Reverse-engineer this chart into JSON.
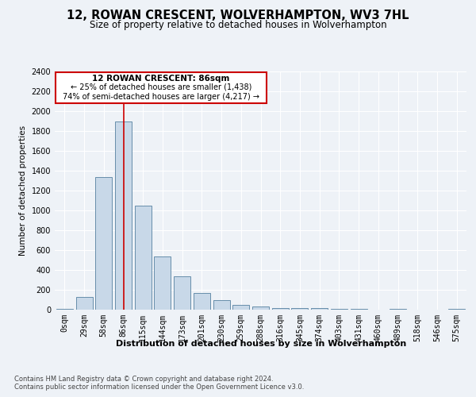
{
  "title1": "12, ROWAN CRESCENT, WOLVERHAMPTON, WV3 7HL",
  "title2": "Size of property relative to detached houses in Wolverhampton",
  "xlabel": "Distribution of detached houses by size in Wolverhampton",
  "ylabel": "Number of detached properties",
  "footer1": "Contains HM Land Registry data © Crown copyright and database right 2024.",
  "footer2": "Contains public sector information licensed under the Open Government Licence v3.0.",
  "annotation_title": "12 ROWAN CRESCENT: 86sqm",
  "annotation_line2": "← 25% of detached houses are smaller (1,438)",
  "annotation_line3": "74% of semi-detached houses are larger (4,217) →",
  "property_size": 86,
  "bar_color": "#c8d8e8",
  "bar_edge_color": "#5580a0",
  "vline_color": "#cc0000",
  "annotation_box_color": "#cc0000",
  "categories": [
    "0sqm",
    "29sqm",
    "58sqm",
    "86sqm",
    "115sqm",
    "144sqm",
    "173sqm",
    "201sqm",
    "230sqm",
    "259sqm",
    "288sqm",
    "316sqm",
    "345sqm",
    "374sqm",
    "403sqm",
    "431sqm",
    "460sqm",
    "489sqm",
    "518sqm",
    "546sqm",
    "575sqm"
  ],
  "values": [
    10,
    130,
    1340,
    1900,
    1050,
    540,
    335,
    165,
    100,
    50,
    30,
    20,
    17,
    15,
    10,
    5,
    0,
    5,
    0,
    0,
    10
  ],
  "ylim": [
    0,
    2400
  ],
  "yticks": [
    0,
    200,
    400,
    600,
    800,
    1000,
    1200,
    1400,
    1600,
    1800,
    2000,
    2200,
    2400
  ],
  "background_color": "#eef2f7",
  "plot_bg_color": "#eef2f7",
  "title1_fontsize": 10.5,
  "title2_fontsize": 8.5,
  "ylabel_fontsize": 7.5,
  "xlabel_fontsize": 8,
  "tick_fontsize": 7,
  "ytick_fontsize": 7,
  "footer_fontsize": 6,
  "ann_title_fontsize": 7.5,
  "ann_line_fontsize": 7
}
